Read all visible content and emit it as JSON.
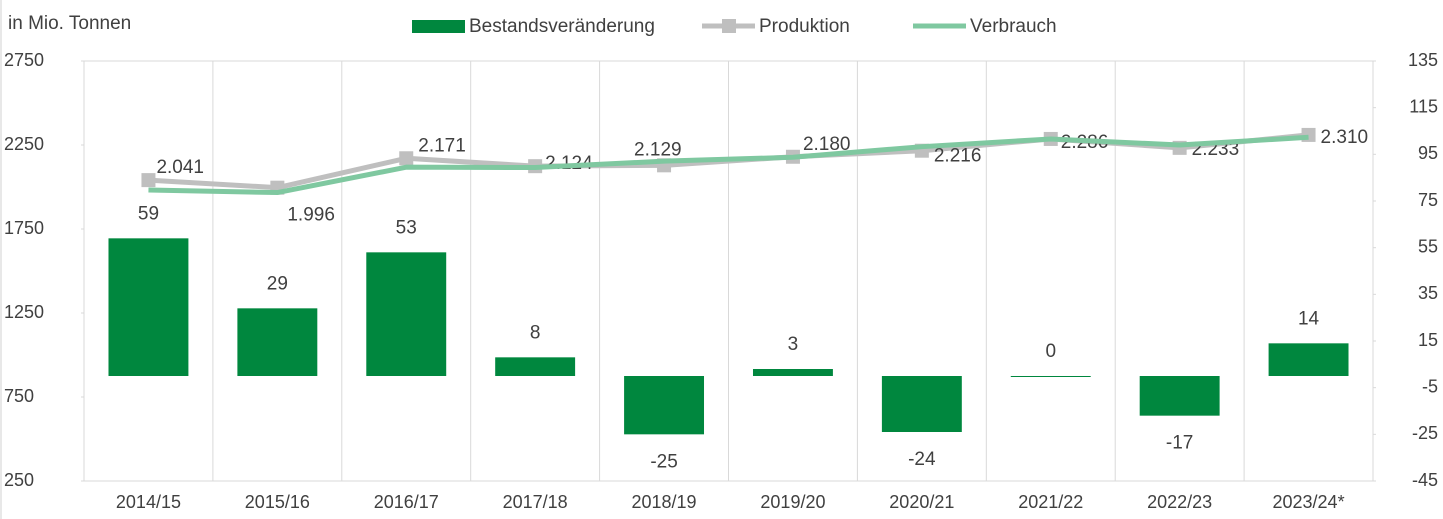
{
  "chart_data": {
    "type": "bar",
    "title": "in Mio. Tonnen",
    "categories": [
      "2014/15",
      "2015/16",
      "2016/17",
      "2017/18",
      "2018/19",
      "2019/20",
      "2020/21",
      "2021/22",
      "2022/23",
      "2023/24*"
    ],
    "series": [
      {
        "name": "Bestandsveränderung",
        "type": "bar",
        "axis": "y2",
        "color": "#00873e",
        "values": [
          59,
          29,
          53,
          8,
          -25,
          3,
          -24,
          0,
          -17,
          14
        ]
      },
      {
        "name": "Produktion",
        "type": "line",
        "axis": "y",
        "color": "#bfbfbf",
        "values": [
          2041,
          1996,
          2171,
          2124,
          2129,
          2180,
          2216,
          2286,
          2233,
          2310
        ],
        "value_labels": [
          "2.041",
          "1.996",
          "2.171",
          "2.124",
          "2.129",
          "2.180",
          "2.216",
          "2.286",
          "2.233",
          "2.310"
        ]
      },
      {
        "name": "Verbrauch",
        "type": "line",
        "axis": "y",
        "color": "#7fc8a0",
        "values": [
          1982,
          1967,
          2118,
          2116,
          2154,
          2177,
          2240,
          2286,
          2250,
          2296
        ]
      }
    ],
    "ylim": [
      250,
      2750
    ],
    "yticks": [
      250,
      750,
      1250,
      1750,
      2250,
      2750
    ],
    "y2lim": [
      -45,
      135
    ],
    "y2ticks": [
      -45,
      -25,
      -5,
      15,
      35,
      55,
      75,
      95,
      115,
      135
    ]
  }
}
